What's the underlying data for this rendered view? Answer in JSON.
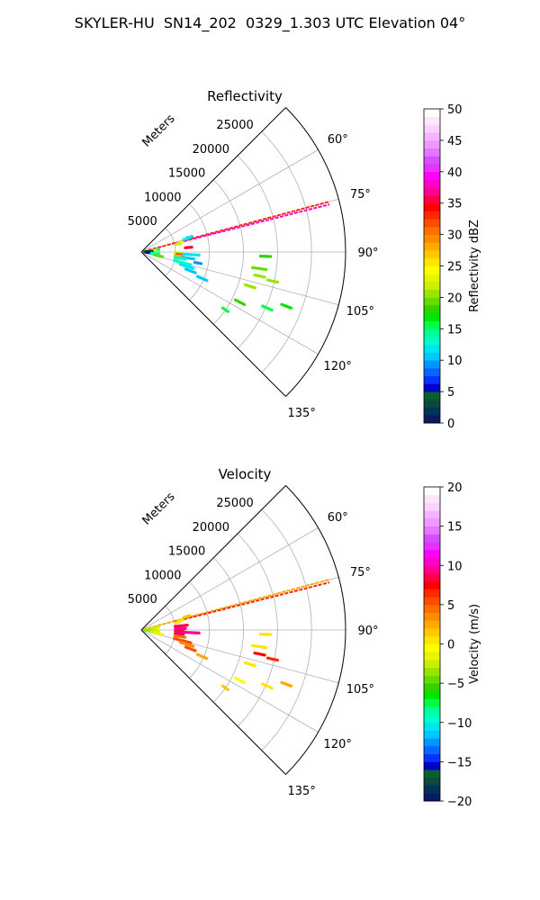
{
  "figure": {
    "title": "SKYLER-HU  SN14_202  0329_1.303 UTC Elevation 04°"
  },
  "chart_data": [
    {
      "type": "polar-sector",
      "title": "Reflectivity",
      "range_label": "Meters",
      "range_ticks": [
        {
          "value": 5000,
          "label": "5000"
        },
        {
          "value": 10000,
          "label": "10000"
        },
        {
          "value": 15000,
          "label": "15000"
        },
        {
          "value": 20000,
          "label": "20000"
        },
        {
          "value": 25000,
          "label": "25000"
        }
      ],
      "rmax": 30000,
      "angle_range_deg": [
        45,
        135
      ],
      "angle_ticks": [
        {
          "value": 60,
          "label": "60°"
        },
        {
          "value": 75,
          "label": "75°"
        },
        {
          "value": 90,
          "label": "90°"
        },
        {
          "value": 105,
          "label": "105°"
        },
        {
          "value": 120,
          "label": "120°"
        },
        {
          "value": 135,
          "label": "135°"
        }
      ],
      "grid": true,
      "colorbar": {
        "label": "Reflectivity dBZ",
        "min": 0,
        "max": 50,
        "ticks": [
          {
            "value": 0,
            "label": "0"
          },
          {
            "value": 5,
            "label": "5"
          },
          {
            "value": 10,
            "label": "10"
          },
          {
            "value": 15,
            "label": "15"
          },
          {
            "value": 20,
            "label": "20"
          },
          {
            "value": 25,
            "label": "25"
          },
          {
            "value": 30,
            "label": "30"
          },
          {
            "value": 35,
            "label": "35"
          },
          {
            "value": 40,
            "label": "40"
          },
          {
            "value": 45,
            "label": "45"
          },
          {
            "value": 50,
            "label": "50"
          }
        ],
        "colors": [
          "#0b1a5e",
          "#00325c",
          "#0a4a3a",
          "#0b5e2e",
          "#0000c8",
          "#0a32ff",
          "#0a64ff",
          "#0096ff",
          "#00c8ff",
          "#00e6f0",
          "#00ffc8",
          "#00ff96",
          "#00ff46",
          "#00e600",
          "#32d200",
          "#64dc00",
          "#96e600",
          "#c8f000",
          "#e6f500",
          "#ffff00",
          "#ffe600",
          "#ffc800",
          "#ffaa00",
          "#ff8c00",
          "#ff6e00",
          "#ff4b00",
          "#ff2800",
          "#ff0000",
          "#ff0046",
          "#ff0096",
          "#ff00c8",
          "#ff00ff",
          "#e632ff",
          "#d250ff",
          "#e678ff",
          "#f096ff",
          "#f5b4ff",
          "#fad2ff",
          "#ffe6ff",
          "#ffffff"
        ]
      },
      "cells": [
        {
          "angle": 75.0,
          "r_start": 300,
          "r_end": 28500,
          "value": 33,
          "style": "line"
        },
        {
          "angle": 75.8,
          "r_start": 5000,
          "r_end": 28500,
          "value": 38,
          "style": "line"
        },
        {
          "angle": 73.5,
          "r_start": 6500,
          "r_end": 7500,
          "value": 13
        },
        {
          "angle": 72.8,
          "r_start": 7000,
          "r_end": 7800,
          "value": 12
        },
        {
          "angle": 76.5,
          "r_start": 5600,
          "r_end": 6200,
          "value": 24
        },
        {
          "angle": 78.0,
          "r_start": 5200,
          "r_end": 5800,
          "value": 22
        },
        {
          "angle": 82.0,
          "r_start": 1800,
          "r_end": 2600,
          "value": 14
        },
        {
          "angle": 83.5,
          "r_start": 1500,
          "r_end": 2200,
          "value": 22
        },
        {
          "angle": 86.0,
          "r_start": 800,
          "r_end": 1600,
          "value": 2
        },
        {
          "angle": 88.0,
          "r_start": 500,
          "r_end": 1400,
          "value": 4
        },
        {
          "angle": 91.5,
          "r_start": 600,
          "r_end": 1500,
          "value": 3
        },
        {
          "angle": 94.0,
          "r_start": 800,
          "r_end": 1800,
          "value": 1
        },
        {
          "angle": 95.0,
          "r_start": 1800,
          "r_end": 2600,
          "value": 14
        },
        {
          "angle": 97.0,
          "r_start": 1500,
          "r_end": 2400,
          "value": 13
        },
        {
          "angle": 92.0,
          "r_start": 5000,
          "r_end": 6000,
          "value": 22
        },
        {
          "angle": 94.0,
          "r_start": 5200,
          "r_end": 6300,
          "value": 33
        },
        {
          "angle": 96.0,
          "r_start": 5000,
          "r_end": 6200,
          "value": 28
        },
        {
          "angle": 93.0,
          "r_start": 6200,
          "r_end": 8500,
          "value": 12
        },
        {
          "angle": 97.5,
          "r_start": 6000,
          "r_end": 7800,
          "value": 11
        },
        {
          "angle": 99.5,
          "r_start": 5000,
          "r_end": 6500,
          "value": 13
        },
        {
          "angle": 104.5,
          "r_start": 5000,
          "r_end": 7500,
          "value": 13
        },
        {
          "angle": 107.5,
          "r_start": 6000,
          "r_end": 8000,
          "value": 12
        },
        {
          "angle": 111.0,
          "r_start": 7000,
          "r_end": 8500,
          "value": 10
        },
        {
          "angle": 113.5,
          "r_start": 9000,
          "r_end": 10500,
          "value": 11
        },
        {
          "angle": 101.0,
          "r_start": 8000,
          "r_end": 9000,
          "value": 9
        },
        {
          "angle": 92.0,
          "r_start": 17500,
          "r_end": 19000,
          "value": 18
        },
        {
          "angle": 98.0,
          "r_start": 16500,
          "r_end": 18500,
          "value": 19
        },
        {
          "angle": 101.5,
          "r_start": 17000,
          "r_end": 18500,
          "value": 20
        },
        {
          "angle": 102.5,
          "r_start": 19000,
          "r_end": 20500,
          "value": 21
        },
        {
          "angle": 107.5,
          "r_start": 16000,
          "r_end": 17500,
          "value": 20
        },
        {
          "angle": 110.5,
          "r_start": 22000,
          "r_end": 23500,
          "value": 17
        },
        {
          "angle": 114.0,
          "r_start": 19500,
          "r_end": 21000,
          "value": 16
        },
        {
          "angle": 117.0,
          "r_start": 15500,
          "r_end": 17000,
          "value": 18
        },
        {
          "angle": 124.5,
          "r_start": 14500,
          "r_end": 15500,
          "value": 15
        },
        {
          "angle": 84.5,
          "r_start": 6500,
          "r_end": 7500,
          "value": 36
        },
        {
          "angle": 102.5,
          "r_start": 2000,
          "r_end": 3200,
          "value": 19
        }
      ]
    },
    {
      "type": "polar-sector",
      "title": "Velocity",
      "range_label": "Meters",
      "range_ticks": [
        {
          "value": 5000,
          "label": "5000"
        },
        {
          "value": 10000,
          "label": "10000"
        },
        {
          "value": 15000,
          "label": "15000"
        },
        {
          "value": 20000,
          "label": "20000"
        },
        {
          "value": 25000,
          "label": "25000"
        }
      ],
      "rmax": 30000,
      "angle_range_deg": [
        45,
        135
      ],
      "angle_ticks": [
        {
          "value": 60,
          "label": "60°"
        },
        {
          "value": 75,
          "label": "75°"
        },
        {
          "value": 90,
          "label": "90°"
        },
        {
          "value": 105,
          "label": "105°"
        },
        {
          "value": 120,
          "label": "120°"
        },
        {
          "value": 135,
          "label": "135°"
        }
      ],
      "grid": true,
      "colorbar": {
        "label": "Velocity (m/s)",
        "min": -20,
        "max": 20,
        "ticks": [
          {
            "value": -20,
            "label": "−20"
          },
          {
            "value": -15,
            "label": "−15"
          },
          {
            "value": -10,
            "label": "−10"
          },
          {
            "value": -5,
            "label": "−5"
          },
          {
            "value": 0,
            "label": "0"
          },
          {
            "value": 5,
            "label": "5"
          },
          {
            "value": 10,
            "label": "10"
          },
          {
            "value": 15,
            "label": "15"
          },
          {
            "value": 20,
            "label": "20"
          }
        ],
        "colors": [
          "#0b1a5e",
          "#00325c",
          "#0a4a3a",
          "#0b5e2e",
          "#0000c8",
          "#0a32ff",
          "#0a64ff",
          "#0096ff",
          "#00c8ff",
          "#00e6f0",
          "#00ffc8",
          "#00ff96",
          "#00ff46",
          "#00e600",
          "#32d200",
          "#64dc00",
          "#96e600",
          "#c8f000",
          "#e6f500",
          "#ffff00",
          "#ffe600",
          "#ffc800",
          "#ffaa00",
          "#ff8c00",
          "#ff6e00",
          "#ff4b00",
          "#ff2800",
          "#ff0000",
          "#ff0046",
          "#ff0096",
          "#ff00c8",
          "#ff00ff",
          "#e632ff",
          "#d250ff",
          "#e678ff",
          "#f096ff",
          "#f5b4ff",
          "#fad2ff",
          "#ffe6ff",
          "#ffffff"
        ]
      },
      "cells": [
        {
          "angle": 75.0,
          "r_start": 300,
          "r_end": 28500,
          "value": 2,
          "style": "line"
        },
        {
          "angle": 75.8,
          "r_start": 5000,
          "r_end": 28500,
          "value": 6,
          "style": "line"
        },
        {
          "angle": 73.5,
          "r_start": 6500,
          "r_end": 7500,
          "value": 1
        },
        {
          "angle": 76.5,
          "r_start": 5600,
          "r_end": 6200,
          "value": 0
        },
        {
          "angle": 78.0,
          "r_start": 5200,
          "r_end": 5800,
          "value": 0
        },
        {
          "angle": 82.0,
          "r_start": 1800,
          "r_end": 2600,
          "value": -2
        },
        {
          "angle": 83.5,
          "r_start": 1500,
          "r_end": 2200,
          "value": -3
        },
        {
          "angle": 86.0,
          "r_start": 800,
          "r_end": 1600,
          "value": -3
        },
        {
          "angle": 91.5,
          "r_start": 600,
          "r_end": 1500,
          "value": -4
        },
        {
          "angle": 95.0,
          "r_start": 1800,
          "r_end": 2600,
          "value": -2
        },
        {
          "angle": 97.0,
          "r_start": 1500,
          "r_end": 2400,
          "value": -3
        },
        {
          "angle": 84.0,
          "r_start": 5000,
          "r_end": 6800,
          "value": 8
        },
        {
          "angle": 88.0,
          "r_start": 5000,
          "r_end": 6500,
          "value": 9
        },
        {
          "angle": 92.0,
          "r_start": 5000,
          "r_end": 6200,
          "value": 8
        },
        {
          "angle": 94.0,
          "r_start": 5200,
          "r_end": 6300,
          "value": 9
        },
        {
          "angle": 96.0,
          "r_start": 5000,
          "r_end": 6200,
          "value": 8
        },
        {
          "angle": 93.0,
          "r_start": 6200,
          "r_end": 8500,
          "value": 9
        },
        {
          "angle": 99.5,
          "r_start": 5000,
          "r_end": 6500,
          "value": 4
        },
        {
          "angle": 104.5,
          "r_start": 5000,
          "r_end": 7500,
          "value": 5
        },
        {
          "angle": 107.5,
          "r_start": 6000,
          "r_end": 8000,
          "value": 3
        },
        {
          "angle": 111.0,
          "r_start": 7000,
          "r_end": 8500,
          "value": 5
        },
        {
          "angle": 113.5,
          "r_start": 9000,
          "r_end": 10500,
          "value": 2
        },
        {
          "angle": 92.0,
          "r_start": 17500,
          "r_end": 19000,
          "value": 0
        },
        {
          "angle": 98.0,
          "r_start": 16500,
          "r_end": 18500,
          "value": 0
        },
        {
          "angle": 101.5,
          "r_start": 17000,
          "r_end": 18500,
          "value": 7
        },
        {
          "angle": 102.5,
          "r_start": 19000,
          "r_end": 20500,
          "value": 6
        },
        {
          "angle": 107.5,
          "r_start": 16000,
          "r_end": 17500,
          "value": 0
        },
        {
          "angle": 110.5,
          "r_start": 22000,
          "r_end": 23500,
          "value": 2
        },
        {
          "angle": 114.0,
          "r_start": 19500,
          "r_end": 21000,
          "value": 0
        },
        {
          "angle": 117.0,
          "r_start": 15500,
          "r_end": 17000,
          "value": -1
        },
        {
          "angle": 124.5,
          "r_start": 14500,
          "r_end": 15500,
          "value": 1
        },
        {
          "angle": 102.5,
          "r_start": 2000,
          "r_end": 3200,
          "value": -2
        }
      ]
    }
  ]
}
